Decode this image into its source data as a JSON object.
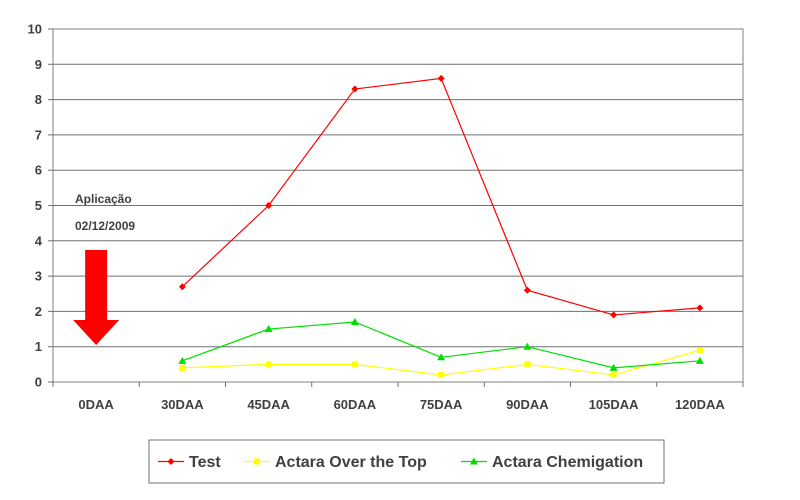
{
  "chart_data": {
    "type": "line",
    "title": "",
    "xlabel": "",
    "ylabel": "",
    "categories": [
      "0DAA",
      "30DAA",
      "45DAA",
      "60DAA",
      "75DAA",
      "90DAA",
      "105DAA",
      "120DAA"
    ],
    "ylim": [
      0,
      10
    ],
    "yticks": [
      0,
      1,
      2,
      3,
      4,
      5,
      6,
      7,
      8,
      9,
      10
    ],
    "grid": true,
    "legend_position": "bottom",
    "series": [
      {
        "name": "Test",
        "color": "#ff0000",
        "marker": "diamond",
        "values": [
          null,
          2.7,
          5.0,
          8.3,
          8.6,
          2.6,
          1.9,
          2.1
        ]
      },
      {
        "name": "Actara Over the Top",
        "color": "#ffff00",
        "marker": "square",
        "values": [
          null,
          0.4,
          0.5,
          0.5,
          0.2,
          0.5,
          0.2,
          0.9
        ]
      },
      {
        "name": "Actara Chemigation",
        "color": "#00dd00",
        "marker": "triangle",
        "values": [
          null,
          0.6,
          1.5,
          1.7,
          0.7,
          1.0,
          0.4,
          0.6
        ]
      }
    ],
    "annotations": [
      {
        "text_line1": "Aplicação",
        "text_line2": "02/12/2009",
        "category": "0DAA",
        "arrow": "down",
        "arrow_color": "#ff0000"
      }
    ]
  }
}
